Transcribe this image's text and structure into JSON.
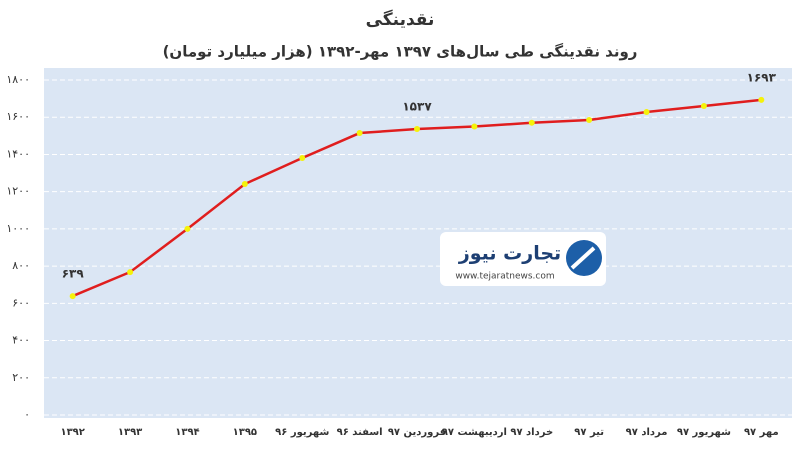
{
  "chart_data": {
    "type": "line",
    "title": "نقدینگی",
    "subtitle": "روند نقدینگی طی سال‌های ۱۳۹۷ مهر-۱۳۹۲ (هزار میلیارد تومان)",
    "categories": [
      "۱۳۹۲",
      "۱۳۹۳",
      "۱۳۹۴",
      "۱۳۹۵",
      "شهریور ۹۶",
      "اسفند ۹۶",
      "فروردین ۹۷",
      "اردیبهشت ۹۷",
      "خرداد ۹۷",
      "تیر ۹۷",
      "مرداد ۹۷",
      "شهریور ۹۷",
      "مهر ۹۷"
    ],
    "values": [
      639,
      768,
      1000,
      1241,
      1381,
      1515,
      1537,
      1550,
      1570,
      1585,
      1628,
      1660,
      1693
    ],
    "value_labels": [
      "۶۳۹",
      null,
      null,
      null,
      null,
      null,
      "۱۵۳۷",
      null,
      null,
      null,
      null,
      null,
      "۱۶۹۳"
    ],
    "color": "#e01e1e",
    "marker_color": "#f5f20a",
    "ylim": [
      0,
      1800
    ],
    "yticks": [
      {
        "value": 0,
        "label": "۰"
      },
      {
        "value": 200,
        "label": "۲۰۰"
      },
      {
        "value": 400,
        "label": "۴۰۰"
      },
      {
        "value": 600,
        "label": "۶۰۰"
      },
      {
        "value": 800,
        "label": "۸۰۰"
      },
      {
        "value": 1000,
        "label": "۱۰۰۰"
      },
      {
        "value": 1200,
        "label": "۱۲۰۰"
      },
      {
        "value": 1400,
        "label": "۱۴۰۰"
      },
      {
        "value": 1600,
        "label": "۱۶۰۰"
      },
      {
        "value": 1800,
        "label": "۱۸۰۰"
      }
    ],
    "grid": true,
    "watermark": {
      "brand": "تجارت نیوز",
      "url": "www.tejaratnews.com"
    }
  }
}
